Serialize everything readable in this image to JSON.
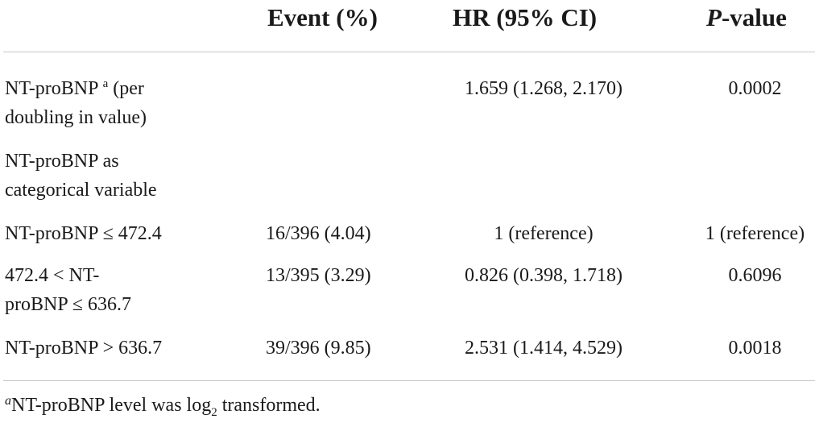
{
  "table": {
    "headers": {
      "event": "Event (%)",
      "hr": "HR (95% CI)",
      "p_italic": "P",
      "p_rest": "-value"
    },
    "rows": [
      {
        "label_line1_pre": "NT-proBNP ",
        "label_sup": "a",
        "label_line1_post": " (per",
        "label_line2": "doubling in value)",
        "event": "",
        "hr": "1.659 (1.268, 2.170)",
        "p": "0.0002"
      },
      {
        "label_line1": "NT-proBNP as",
        "label_line2": "categorical variable",
        "event": "",
        "hr": "",
        "p": ""
      },
      {
        "label_line1": "NT-proBNP ≤ 472.4",
        "event": "16/396 (4.04)",
        "hr": "1 (reference)",
        "p": "1 (reference)"
      },
      {
        "label_line1": "472.4 < NT-",
        "label_line2": "proBNP ≤ 636.7",
        "event": "13/395 (3.29)",
        "hr": "0.826 (0.398, 1.718)",
        "p": "0.6096"
      },
      {
        "label_line1": "NT-proBNP > 636.7",
        "event": "39/396 (9.85)",
        "hr": "2.531 (1.414, 4.529)",
        "p": "0.0018"
      }
    ],
    "footnote": {
      "letter": "a",
      "text_pre": "NT-proBNP level was log",
      "sub": "2",
      "text_post": " transformed."
    }
  }
}
